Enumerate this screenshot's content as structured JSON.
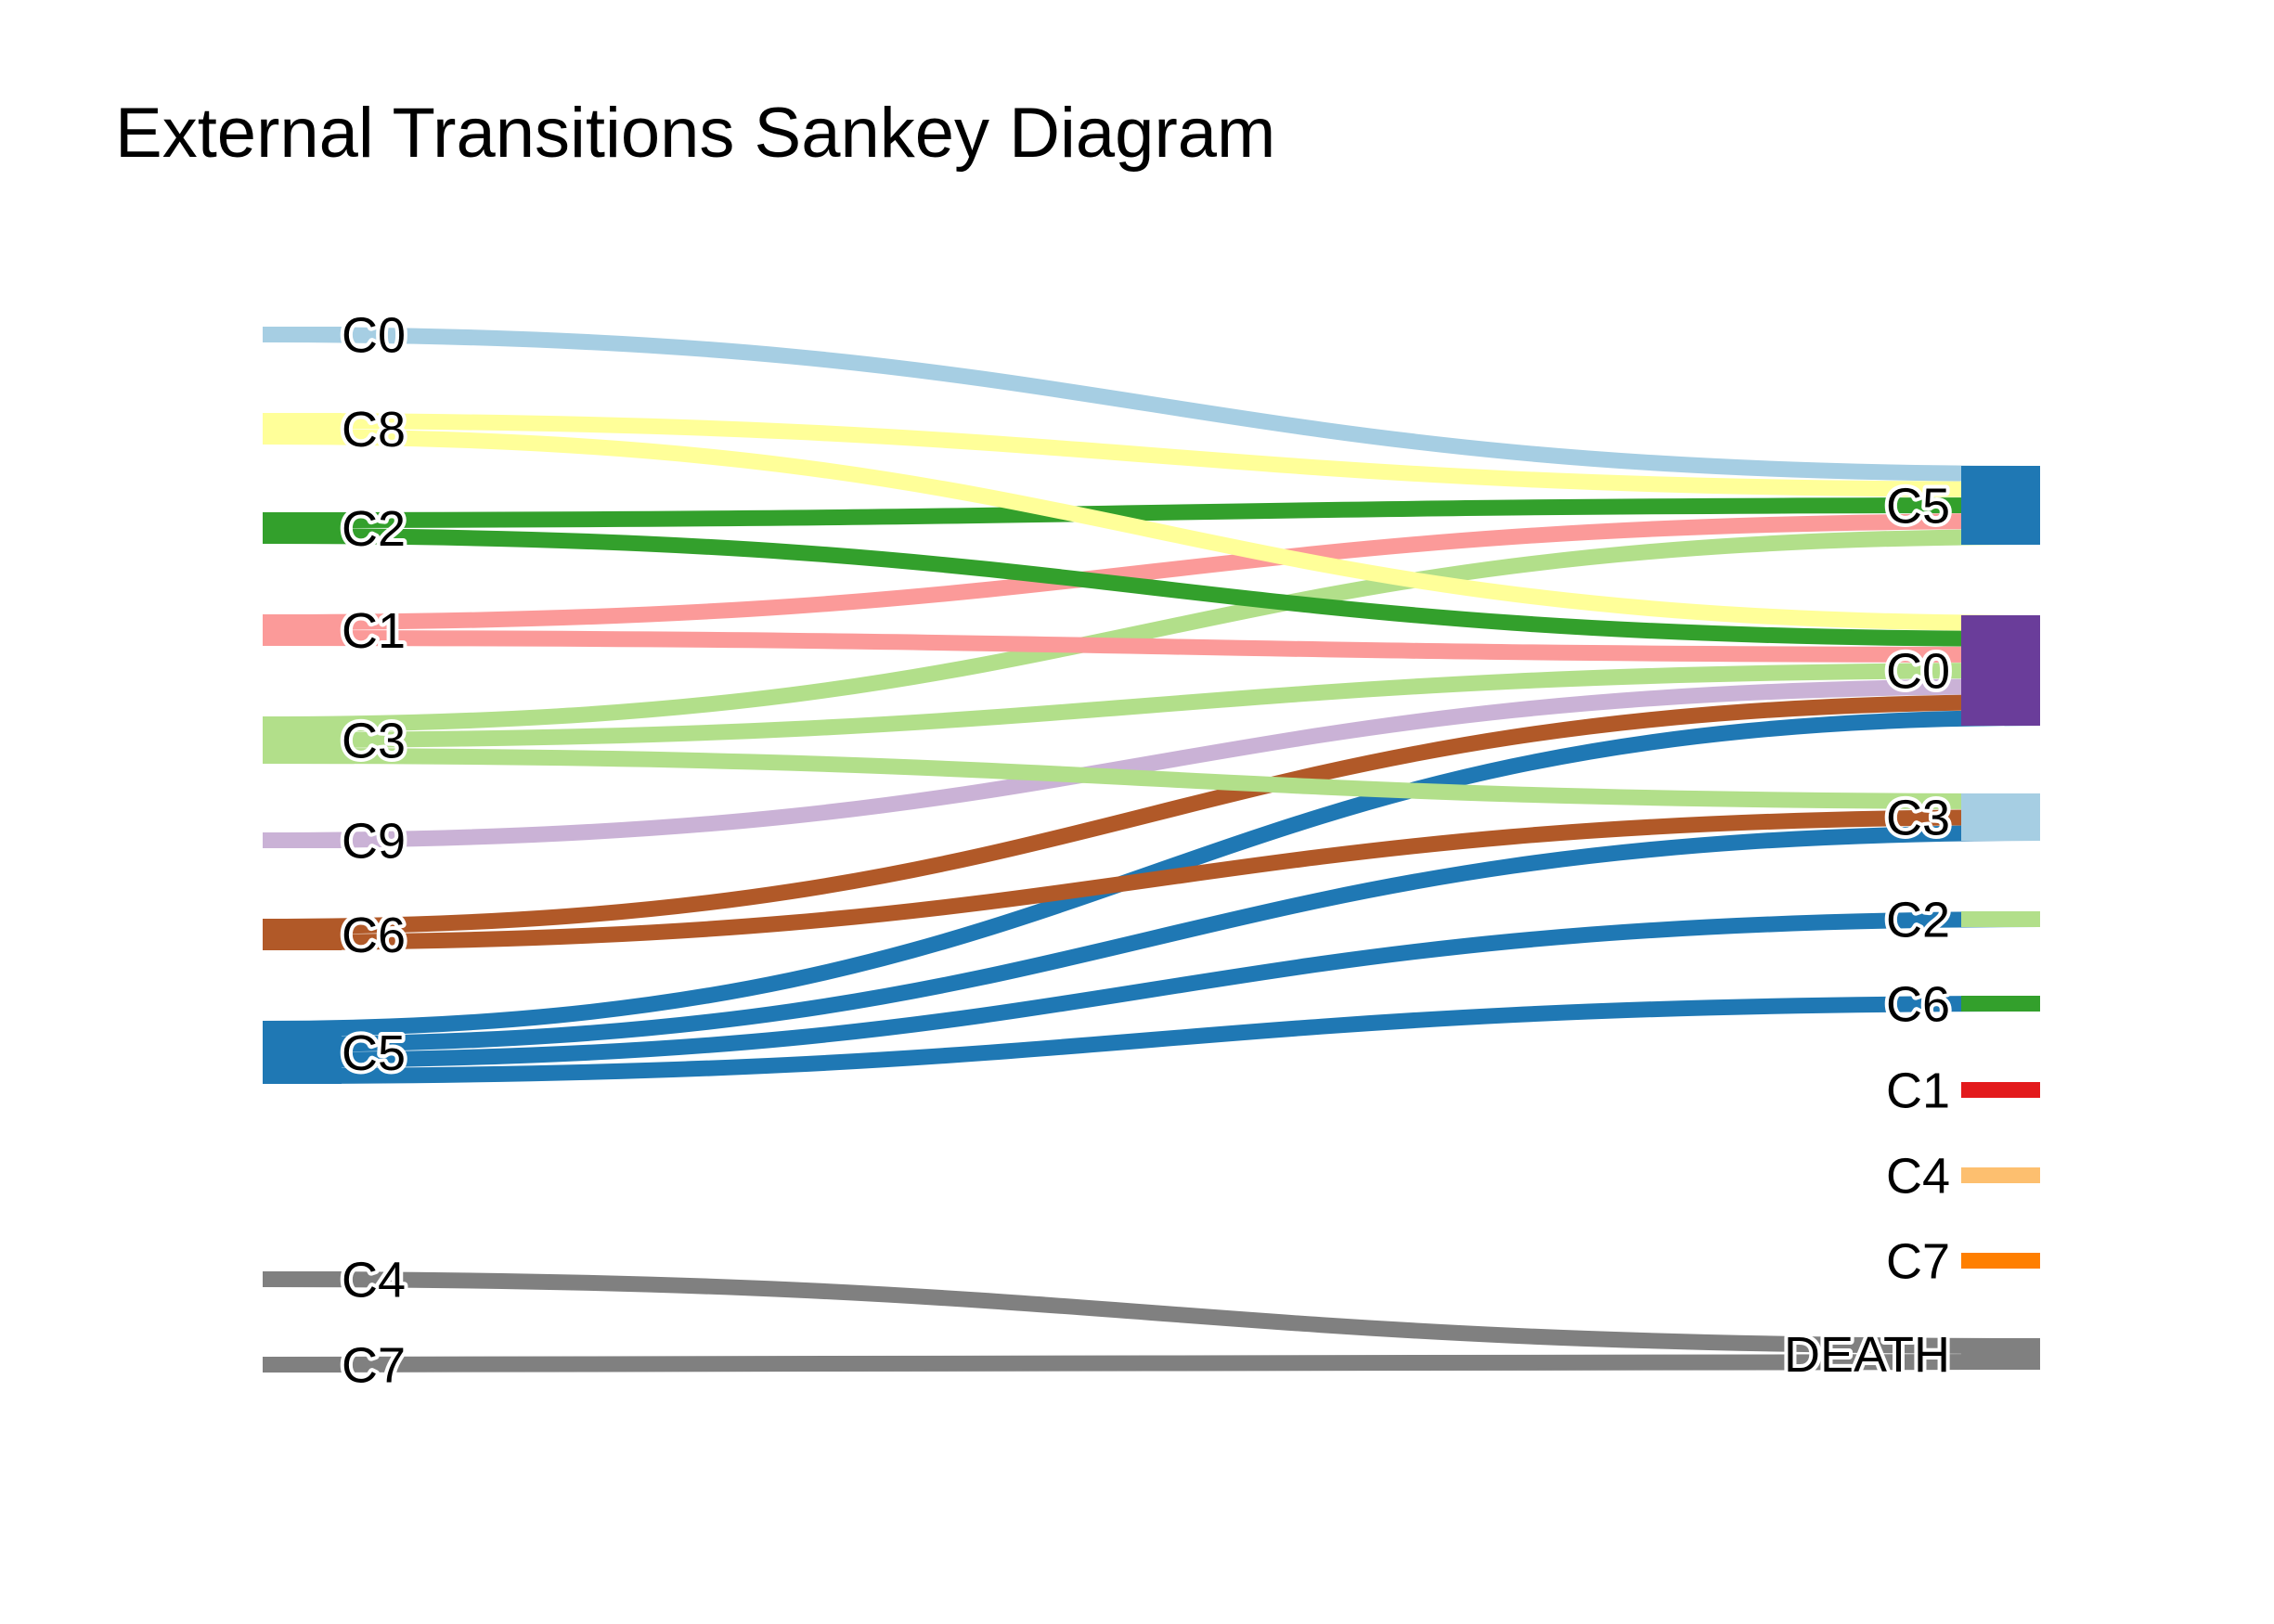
{
  "chart_data": {
    "type": "sankey",
    "title": "External Transitions Sankey Diagram",
    "source_nodes": [
      {
        "id": "s_C0",
        "label": "C0",
        "color": "#a6cee3"
      },
      {
        "id": "s_C8",
        "label": "C8",
        "color": "#ffff99"
      },
      {
        "id": "s_C2",
        "label": "C2",
        "color": "#33a02c"
      },
      {
        "id": "s_C1",
        "label": "C1",
        "color": "#fb9a99"
      },
      {
        "id": "s_C3",
        "label": "C3",
        "color": "#b2df8a"
      },
      {
        "id": "s_C9",
        "label": "C9",
        "color": "#cab2d6"
      },
      {
        "id": "s_C6",
        "label": "C6",
        "color": "#b15928"
      },
      {
        "id": "s_C5",
        "label": "C5",
        "color": "#1f78b4"
      },
      {
        "id": "s_C4",
        "label": "C4",
        "color": "#808080"
      },
      {
        "id": "s_C7",
        "label": "C7",
        "color": "#808080"
      }
    ],
    "target_nodes": [
      {
        "id": "t_C5",
        "label": "C5",
        "color": "#1f78b4"
      },
      {
        "id": "t_C0",
        "label": "C0",
        "color": "#6a3d9a"
      },
      {
        "id": "t_C3",
        "label": "C3",
        "color": "#a6cee3"
      },
      {
        "id": "t_C2",
        "label": "C2",
        "color": "#b2df8a"
      },
      {
        "id": "t_C6",
        "label": "C6",
        "color": "#33a02c"
      },
      {
        "id": "t_C1",
        "label": "C1",
        "color": "#e31a1c"
      },
      {
        "id": "t_C4",
        "label": "C4",
        "color": "#fdbf6f"
      },
      {
        "id": "t_C7",
        "label": "C7",
        "color": "#ff7f00"
      },
      {
        "id": "t_DEATH",
        "label": "DEATH",
        "color": "#808080"
      }
    ],
    "links": [
      {
        "source": "s_C0",
        "target": "t_C5",
        "value": 1
      },
      {
        "source": "s_C8",
        "target": "t_C5",
        "value": 1
      },
      {
        "source": "s_C2",
        "target": "t_C5",
        "value": 1
      },
      {
        "source": "s_C1",
        "target": "t_C5",
        "value": 1
      },
      {
        "source": "s_C3",
        "target": "t_C5",
        "value": 1
      },
      {
        "source": "s_C8",
        "target": "t_C0",
        "value": 1
      },
      {
        "source": "s_C2",
        "target": "t_C0",
        "value": 1
      },
      {
        "source": "s_C1",
        "target": "t_C0",
        "value": 1
      },
      {
        "source": "s_C3",
        "target": "t_C0",
        "value": 1
      },
      {
        "source": "s_C9",
        "target": "t_C0",
        "value": 1
      },
      {
        "source": "s_C6",
        "target": "t_C0",
        "value": 1
      },
      {
        "source": "s_C5",
        "target": "t_C0",
        "value": 1
      },
      {
        "source": "s_C3",
        "target": "t_C3",
        "value": 1
      },
      {
        "source": "s_C6",
        "target": "t_C3",
        "value": 1
      },
      {
        "source": "s_C5",
        "target": "t_C3",
        "value": 1
      },
      {
        "source": "s_C5",
        "target": "t_C2",
        "value": 1
      },
      {
        "source": "s_C5",
        "target": "t_C6",
        "value": 1
      },
      {
        "source": "s_C4",
        "target": "t_DEATH",
        "value": 1
      },
      {
        "source": "s_C7",
        "target": "t_DEATH",
        "value": 1
      }
    ]
  }
}
